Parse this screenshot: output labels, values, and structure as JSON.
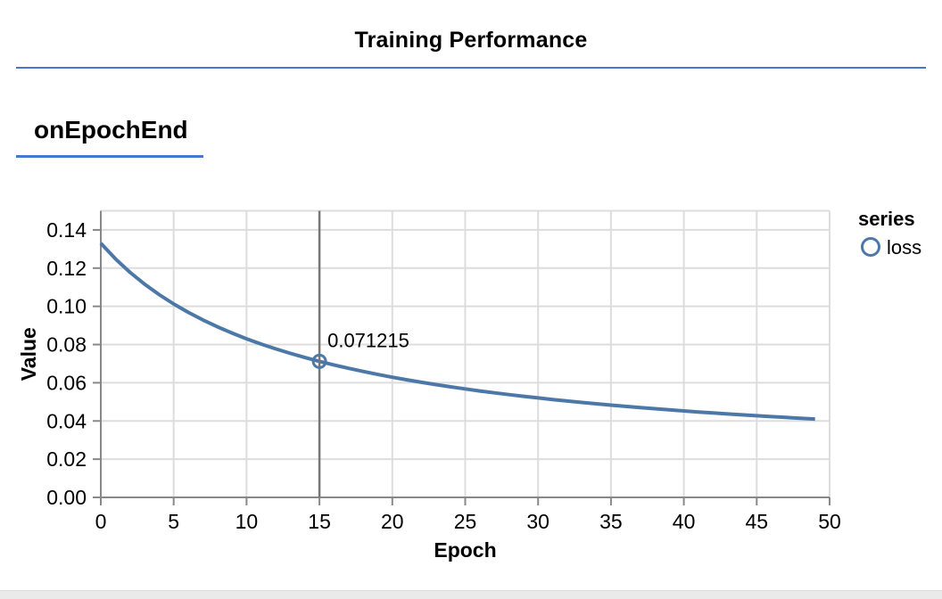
{
  "page": {
    "title": "Training Performance",
    "section_heading": "onEpochEnd"
  },
  "colors": {
    "accent_rule": "#4578d0",
    "series_line": "#4c78a8",
    "cursor_rule": "#777777",
    "gridline": "#dddddd",
    "axis": "#888888",
    "label_text": "#000000",
    "bottom_bar": "#eaeaea"
  },
  "chart_data": {
    "type": "line",
    "title": "",
    "xlabel": "Epoch",
    "ylabel": "Value",
    "xlim": [
      0,
      50
    ],
    "ylim": [
      0,
      0.15
    ],
    "x_ticks": [
      0,
      5,
      10,
      15,
      20,
      25,
      30,
      35,
      40,
      45,
      50
    ],
    "y_ticks": [
      0,
      0.02,
      0.04,
      0.06,
      0.08,
      0.1,
      0.12,
      0.14
    ],
    "grid": true,
    "legend": {
      "title": "series",
      "position": "right",
      "entries": [
        {
          "label": "loss",
          "symbol": "open-circle"
        }
      ]
    },
    "series": [
      {
        "name": "loss",
        "x": [
          0,
          1,
          2,
          3,
          4,
          5,
          6,
          7,
          8,
          9,
          10,
          11,
          12,
          13,
          14,
          15,
          16,
          17,
          18,
          19,
          20,
          21,
          22,
          23,
          24,
          25,
          26,
          27,
          28,
          29,
          30,
          31,
          32,
          33,
          34,
          35,
          36,
          37,
          38,
          39,
          40,
          41,
          42,
          43,
          44,
          45,
          46,
          47,
          48,
          49
        ],
        "values": [
          0.133,
          0.12489,
          0.11783,
          0.11163,
          0.10614,
          0.10124,
          0.09685,
          0.09289,
          0.08929,
          0.08602,
          0.08302,
          0.08027,
          0.07773,
          0.07539,
          0.07322,
          0.071215,
          0.06931,
          0.06755,
          0.06591,
          0.06436,
          0.06291,
          0.06154,
          0.06025,
          0.05902,
          0.05787,
          0.05677,
          0.05573,
          0.05474,
          0.0538,
          0.0529,
          0.05205,
          0.05123,
          0.05045,
          0.0497,
          0.04898,
          0.0483,
          0.04764,
          0.04701,
          0.0464,
          0.04581,
          0.04525,
          0.04471,
          0.04418,
          0.04368,
          0.04319,
          0.04272,
          0.04227,
          0.04183,
          0.0414,
          0.04099
        ]
      }
    ],
    "cursor": {
      "x": 15,
      "value": 0.071215,
      "tooltip_label": "0.071215"
    }
  }
}
